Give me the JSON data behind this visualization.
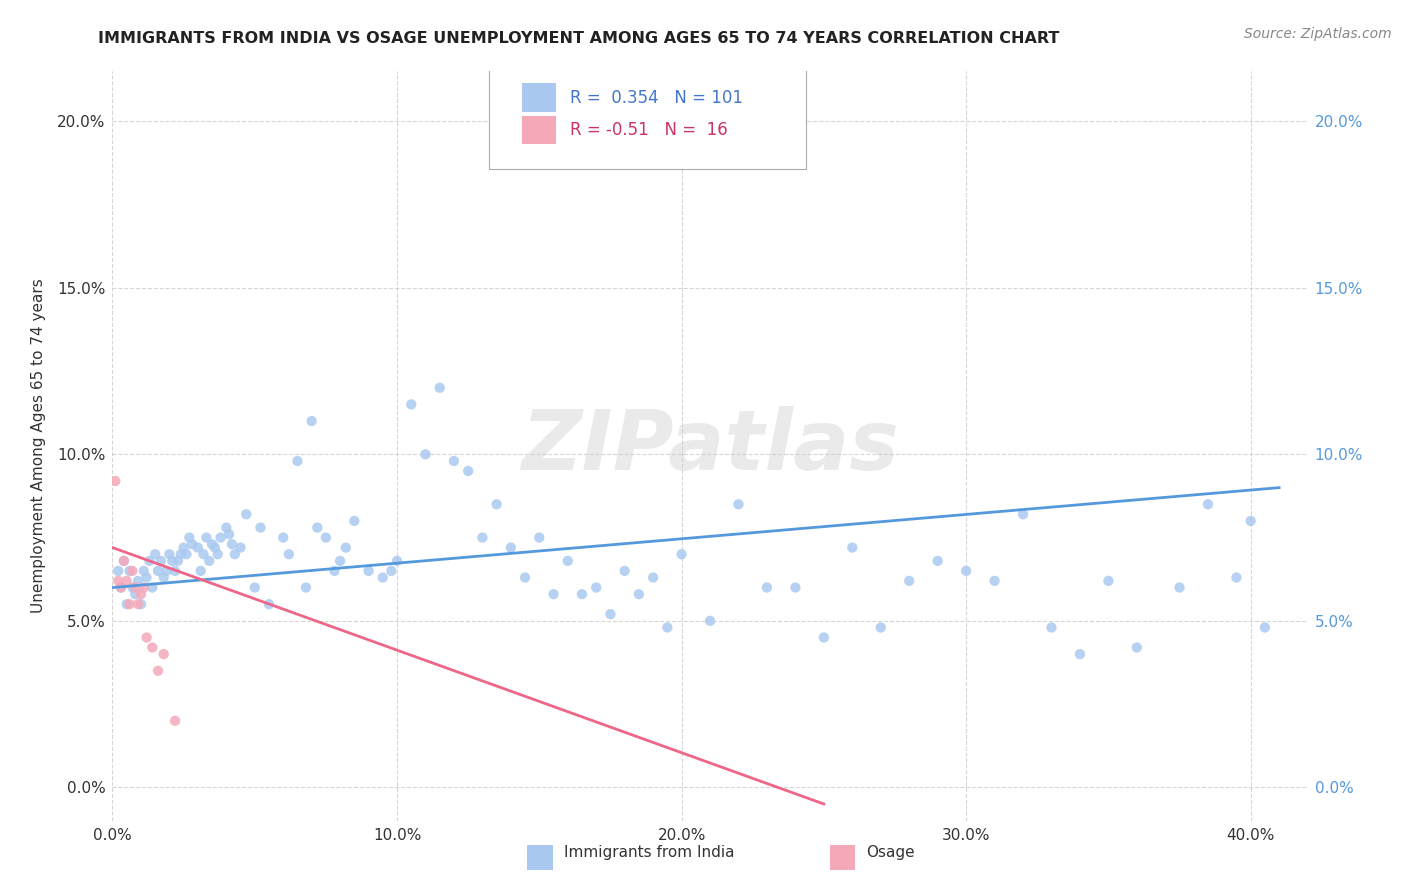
{
  "title": "IMMIGRANTS FROM INDIA VS OSAGE UNEMPLOYMENT AMONG AGES 65 TO 74 YEARS CORRELATION CHART",
  "source_text": "Source: ZipAtlas.com",
  "ylabel": "Unemployment Among Ages 65 to 74 years",
  "xlim": [
    0.0,
    0.42
  ],
  "ylim": [
    -0.01,
    0.215
  ],
  "xticks": [
    0.0,
    0.1,
    0.2,
    0.3,
    0.4
  ],
  "xticklabels": [
    "0.0%",
    "10.0%",
    "20.0%",
    "30.0%",
    "40.0%"
  ],
  "yticks": [
    0.0,
    0.05,
    0.1,
    0.15,
    0.2
  ],
  "yticklabels": [
    "0.0%",
    "5.0%",
    "10.0%",
    "15.0%",
    "20.0%"
  ],
  "india_R": 0.354,
  "india_N": 101,
  "osage_R": -0.51,
  "osage_N": 16,
  "india_color": "#aac9f0",
  "osage_color": "#f5a8b8",
  "india_line_color": "#5599dd",
  "osage_line_color": "#ee6688",
  "watermark": "ZIPatlas",
  "background_color": "#ffffff",
  "grid_color": "#cccccc",
  "india_text_color": "#4477cc",
  "osage_text_color": "#cc3366",
  "right_axis_color": "#5599dd",
  "india_scatter_x": [
    0.002,
    0.003,
    0.004,
    0.005,
    0.006,
    0.007,
    0.008,
    0.009,
    0.01,
    0.011,
    0.012,
    0.013,
    0.014,
    0.015,
    0.016,
    0.017,
    0.018,
    0.019,
    0.02,
    0.021,
    0.022,
    0.023,
    0.024,
    0.025,
    0.026,
    0.027,
    0.028,
    0.03,
    0.031,
    0.032,
    0.033,
    0.034,
    0.035,
    0.036,
    0.037,
    0.038,
    0.04,
    0.041,
    0.042,
    0.043,
    0.045,
    0.047,
    0.05,
    0.052,
    0.055,
    0.06,
    0.062,
    0.065,
    0.068,
    0.07,
    0.072,
    0.075,
    0.078,
    0.08,
    0.082,
    0.085,
    0.09,
    0.095,
    0.098,
    0.1,
    0.105,
    0.11,
    0.115,
    0.12,
    0.125,
    0.13,
    0.135,
    0.14,
    0.145,
    0.15,
    0.155,
    0.16,
    0.165,
    0.17,
    0.175,
    0.18,
    0.185,
    0.19,
    0.195,
    0.2,
    0.21,
    0.22,
    0.23,
    0.24,
    0.25,
    0.26,
    0.27,
    0.28,
    0.29,
    0.3,
    0.31,
    0.32,
    0.33,
    0.34,
    0.35,
    0.36,
    0.375,
    0.385,
    0.395,
    0.4,
    0.405
  ],
  "india_scatter_y": [
    0.065,
    0.06,
    0.068,
    0.055,
    0.065,
    0.06,
    0.058,
    0.062,
    0.055,
    0.065,
    0.063,
    0.068,
    0.06,
    0.07,
    0.065,
    0.068,
    0.063,
    0.065,
    0.07,
    0.068,
    0.065,
    0.068,
    0.07,
    0.072,
    0.07,
    0.075,
    0.073,
    0.072,
    0.065,
    0.07,
    0.075,
    0.068,
    0.073,
    0.072,
    0.07,
    0.075,
    0.078,
    0.076,
    0.073,
    0.07,
    0.072,
    0.082,
    0.06,
    0.078,
    0.055,
    0.075,
    0.07,
    0.098,
    0.06,
    0.11,
    0.078,
    0.075,
    0.065,
    0.068,
    0.072,
    0.08,
    0.065,
    0.063,
    0.065,
    0.068,
    0.115,
    0.1,
    0.12,
    0.098,
    0.095,
    0.075,
    0.085,
    0.072,
    0.063,
    0.075,
    0.058,
    0.068,
    0.058,
    0.06,
    0.052,
    0.065,
    0.058,
    0.063,
    0.048,
    0.07,
    0.05,
    0.085,
    0.06,
    0.06,
    0.045,
    0.072,
    0.048,
    0.062,
    0.068,
    0.065,
    0.062,
    0.082,
    0.048,
    0.04,
    0.062,
    0.042,
    0.06,
    0.085,
    0.063,
    0.08,
    0.048
  ],
  "osage_scatter_x": [
    0.001,
    0.002,
    0.003,
    0.004,
    0.005,
    0.006,
    0.007,
    0.008,
    0.009,
    0.01,
    0.011,
    0.012,
    0.014,
    0.016,
    0.018,
    0.022
  ],
  "osage_scatter_y": [
    0.092,
    0.062,
    0.06,
    0.068,
    0.062,
    0.055,
    0.065,
    0.06,
    0.055,
    0.058,
    0.06,
    0.045,
    0.042,
    0.035,
    0.04,
    0.02
  ],
  "india_line_x0": 0.0,
  "india_line_x1": 0.41,
  "india_line_y0": 0.06,
  "india_line_y1": 0.09,
  "osage_line_x0": 0.0,
  "osage_line_x1": 0.25,
  "osage_line_y0": 0.072,
  "osage_line_y1": -0.005
}
